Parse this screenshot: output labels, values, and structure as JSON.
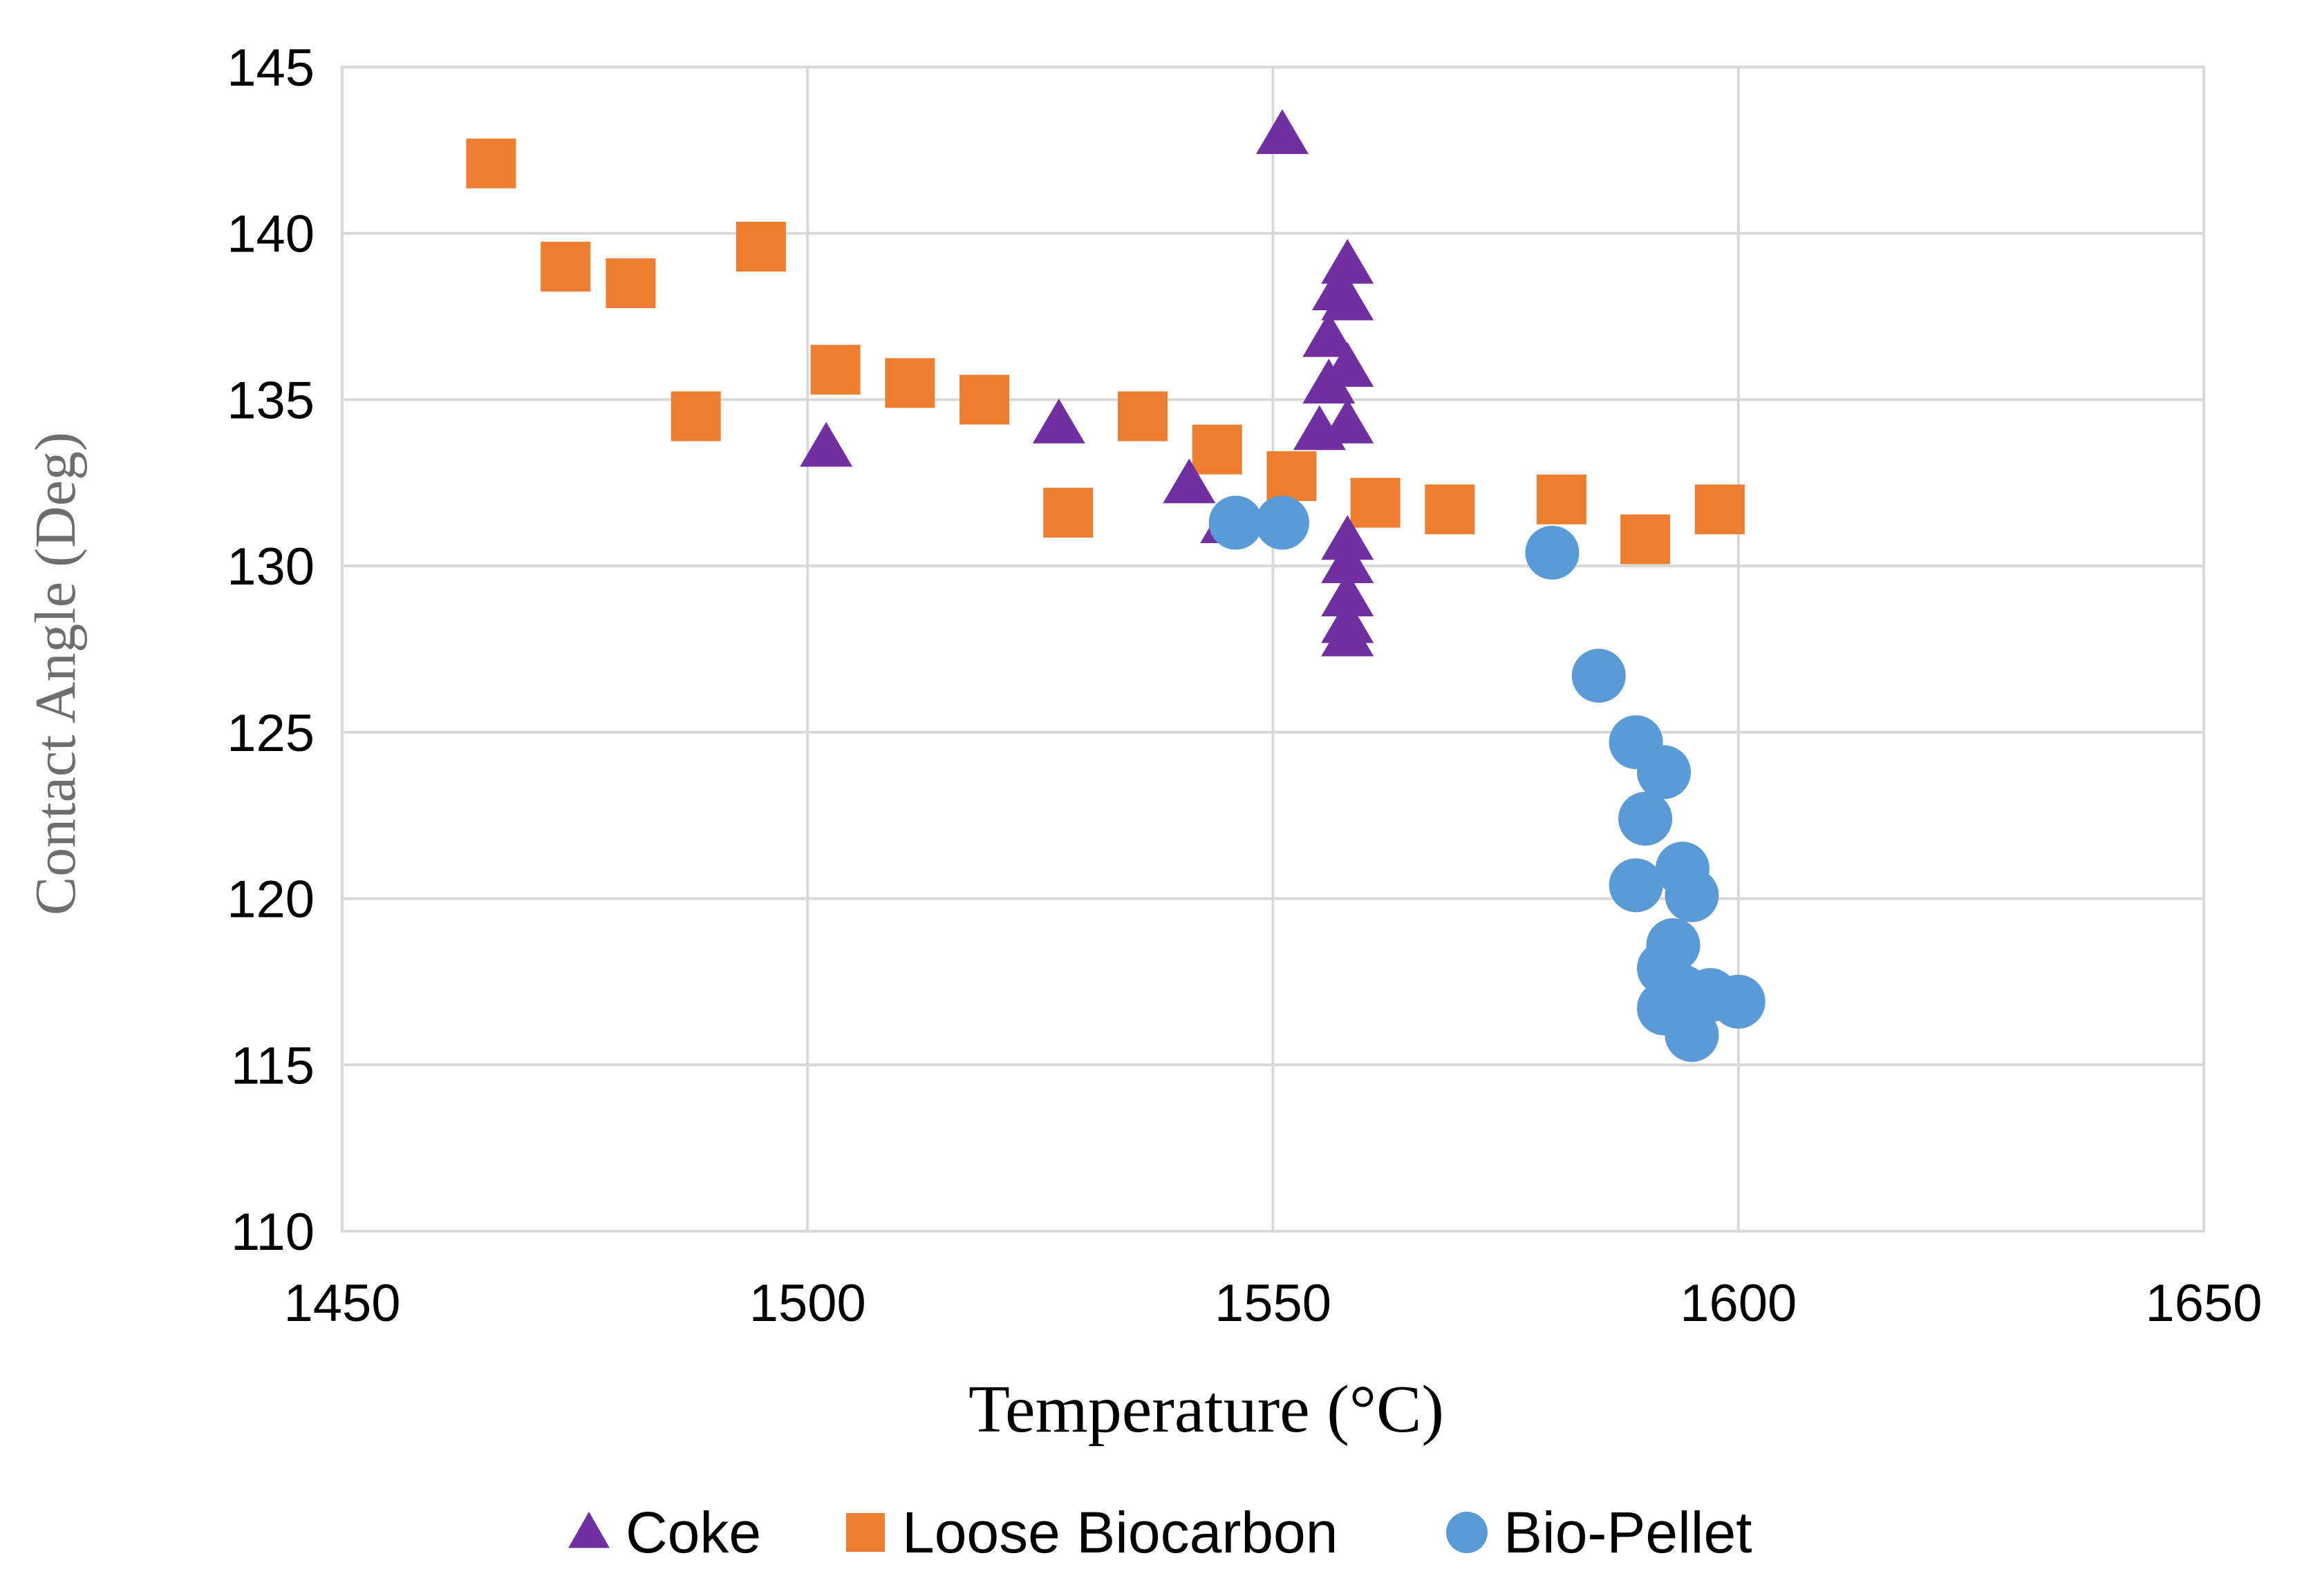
{
  "chart_data": {
    "type": "scatter",
    "title": "",
    "xlabel": "Temperature (°C)",
    "ylabel": "Contact Angle (Deg)",
    "xlim": [
      1450,
      1650
    ],
    "ylim": [
      110,
      145
    ],
    "xticks": [
      1450,
      1500,
      1550,
      1600,
      1650
    ],
    "yticks": [
      110,
      115,
      120,
      125,
      130,
      135,
      140,
      145
    ],
    "grid": true,
    "legend_position": "bottom",
    "series": [
      {
        "name": "Coke",
        "marker": "triangle",
        "color": "#7030a0",
        "points": [
          [
            1502,
            133.5
          ],
          [
            1527,
            134.2
          ],
          [
            1541,
            132.4
          ],
          [
            1545,
            131.2
          ],
          [
            1551,
            142.9
          ],
          [
            1555,
            134
          ],
          [
            1556,
            135.4
          ],
          [
            1556,
            136.8
          ],
          [
            1557,
            138.2
          ],
          [
            1558,
            139
          ],
          [
            1558,
            137.9
          ],
          [
            1558,
            135.9
          ],
          [
            1558,
            134.2
          ],
          [
            1558,
            130.7
          ],
          [
            1558,
            130
          ],
          [
            1558,
            129
          ],
          [
            1558,
            128.2
          ],
          [
            1558,
            127.8
          ]
        ]
      },
      {
        "name": "Loose Biocarbon",
        "marker": "square",
        "color": "#ed7d31",
        "points": [
          [
            1466,
            142.1
          ],
          [
            1474,
            139
          ],
          [
            1481,
            138.5
          ],
          [
            1488,
            134.5
          ],
          [
            1495,
            139.6
          ],
          [
            1503,
            135.9
          ],
          [
            1511,
            135.5
          ],
          [
            1519,
            135
          ],
          [
            1528,
            131.6
          ],
          [
            1536,
            134.5
          ],
          [
            1544,
            133.5
          ],
          [
            1552,
            132.7
          ],
          [
            1561,
            131.9
          ],
          [
            1569,
            131.7
          ],
          [
            1581,
            132
          ],
          [
            1590,
            130.8
          ],
          [
            1598,
            131.7
          ]
        ]
      },
      {
        "name": "Bio-Pellet",
        "marker": "circle",
        "color": "#5b9bd5",
        "points": [
          [
            1546,
            131.3
          ],
          [
            1551,
            131.3
          ],
          [
            1580,
            130.4
          ],
          [
            1585,
            126.7
          ],
          [
            1589,
            124.7
          ],
          [
            1592,
            123.8
          ],
          [
            1590,
            122.4
          ],
          [
            1594,
            120.9
          ],
          [
            1589,
            120.4
          ],
          [
            1595,
            120.1
          ],
          [
            1593,
            118.6
          ],
          [
            1592,
            117.9
          ],
          [
            1594,
            117.2
          ],
          [
            1592,
            116.7
          ],
          [
            1597,
            117.1
          ],
          [
            1600,
            116.9
          ],
          [
            1595,
            115.9
          ]
        ]
      }
    ]
  }
}
